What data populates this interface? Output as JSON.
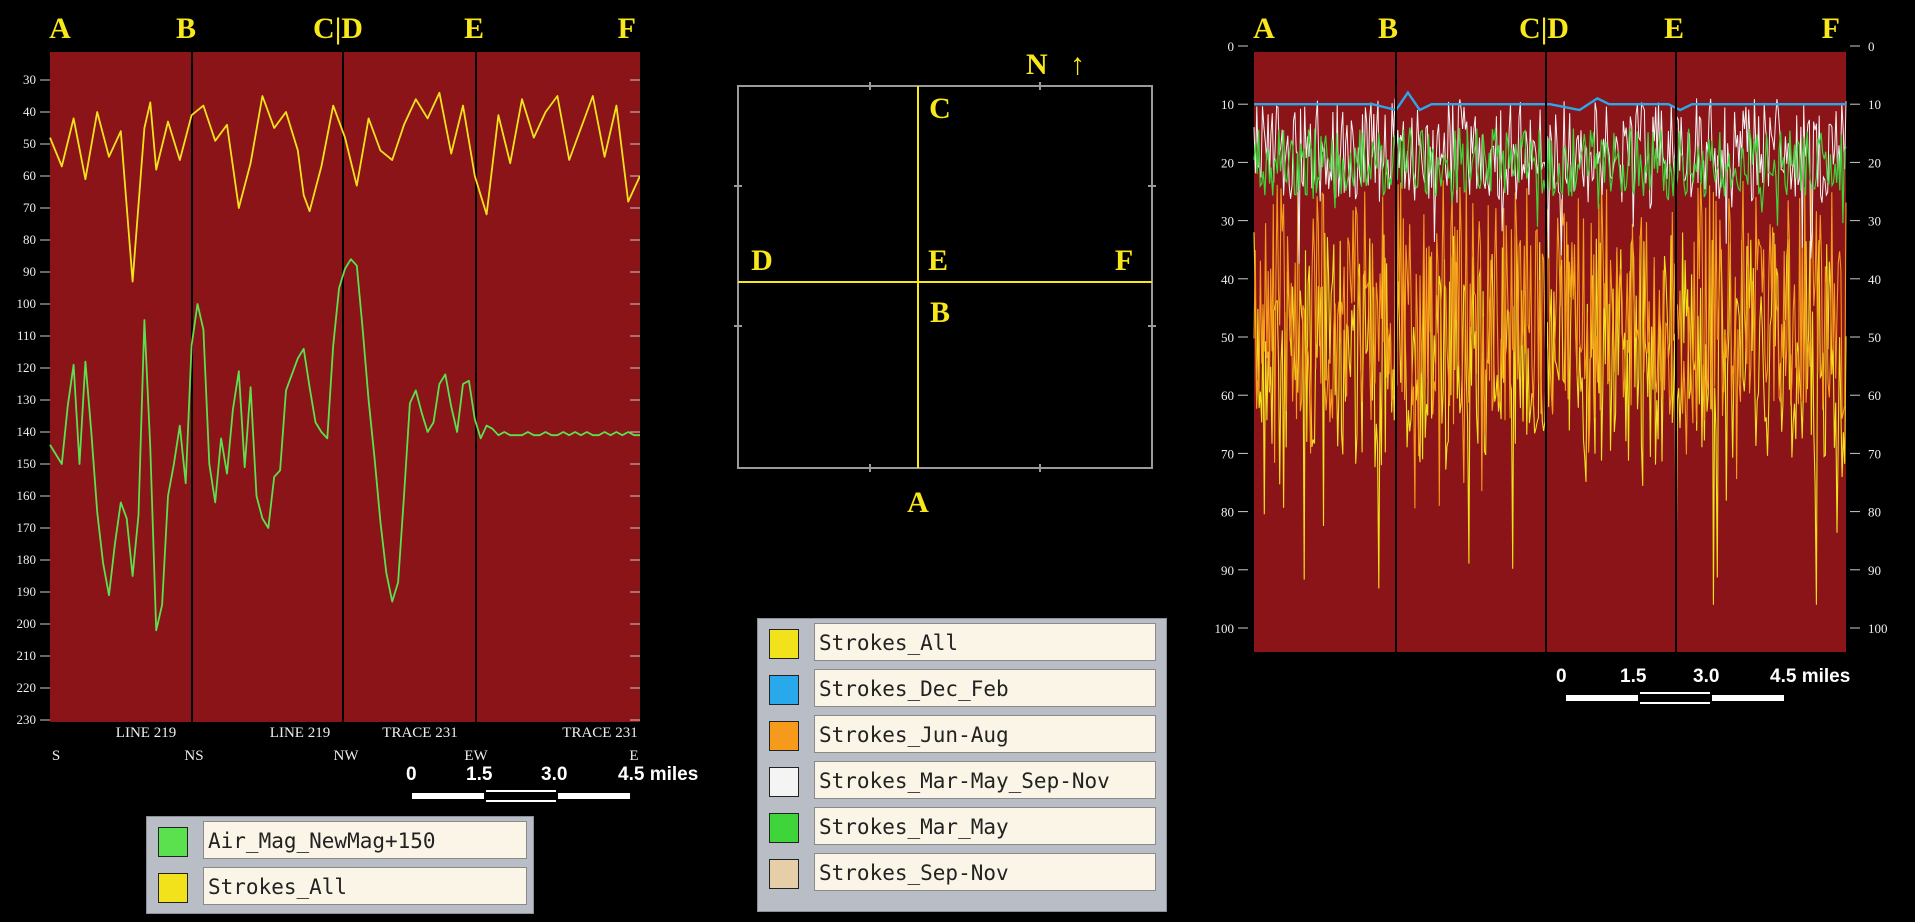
{
  "colors": {
    "panel_bg": "#8b1418",
    "strokes_all": "#f2e21c",
    "air_mag": "#5be04e",
    "strokes_dec_feb": "#2aa8ec",
    "strokes_jun_aug": "#f59a1a",
    "strokes_mar_may_sep_nov": "#f4f4f4",
    "strokes_mar_may": "#3fd43a",
    "strokes_sep_nov": "#e6cfa8",
    "section_label": "#f7e71b"
  },
  "chart_data": [
    {
      "type": "line",
      "section_labels": [
        "A",
        "B",
        "C|D",
        "E",
        "F"
      ],
      "y_ticks": [
        "30",
        "40",
        "50",
        "60",
        "70",
        "80",
        "90",
        "100",
        "110",
        "120",
        "130",
        "140",
        "150",
        "160",
        "170",
        "180",
        "190",
        "200",
        "210",
        "220",
        "230"
      ],
      "ylim": [
        230,
        20
      ],
      "bottom_labels": [
        "LINE 219",
        "LINE 219",
        "TRACE 231",
        "TRACE 231"
      ],
      "direction_labels": [
        "S",
        "NS",
        "NW",
        "EW",
        "E"
      ],
      "series": [
        {
          "name": "Strokes_All",
          "x": [
            0,
            2,
            4,
            6,
            8,
            10,
            12,
            14,
            16,
            17,
            18,
            20,
            22,
            24,
            26,
            28,
            30,
            32,
            34,
            36,
            38,
            40,
            42,
            43,
            44,
            46,
            48,
            50,
            52,
            54,
            56,
            58,
            60,
            62,
            64,
            66,
            68,
            70,
            72,
            74,
            76,
            78,
            80,
            82,
            84,
            86,
            88,
            90,
            92,
            94,
            96,
            98,
            100
          ],
          "values": [
            48,
            57,
            42,
            61,
            40,
            54,
            46,
            93,
            45,
            37,
            58,
            43,
            55,
            41,
            38,
            49,
            44,
            70,
            56,
            35,
            45,
            40,
            52,
            66,
            71,
            57,
            38,
            48,
            63,
            42,
            52,
            55,
            44,
            36,
            42,
            34,
            53,
            38,
            60,
            72,
            41,
            56,
            36,
            48,
            40,
            35,
            55,
            45,
            35,
            54,
            38,
            68,
            60
          ]
        },
        {
          "name": "Air_Mag_NewMag+150",
          "x": [
            0,
            2,
            3,
            4,
            5,
            6,
            7,
            8,
            9,
            10,
            11,
            12,
            13,
            14,
            15,
            16,
            17,
            18,
            19,
            20,
            21,
            22,
            23,
            24,
            25,
            26,
            27,
            28,
            29,
            30,
            31,
            32,
            33,
            34,
            35,
            36,
            37,
            38,
            39,
            40,
            41,
            42,
            43,
            44,
            45,
            46,
            47,
            48,
            49,
            50,
            51,
            52,
            53,
            54,
            55,
            56,
            57,
            58,
            59,
            60,
            61,
            62,
            63,
            64,
            65,
            66,
            67,
            68,
            69,
            70,
            71,
            72,
            73,
            74,
            75,
            76,
            77,
            78,
            79,
            80,
            81,
            82,
            83,
            84,
            85,
            86,
            87,
            88,
            89,
            90,
            91,
            92,
            93,
            94,
            95,
            96,
            97,
            98,
            99,
            100
          ],
          "values": [
            144,
            150,
            132,
            119,
            150,
            118,
            140,
            165,
            181,
            191,
            175,
            162,
            167,
            185,
            166,
            105,
            145,
            202,
            194,
            160,
            150,
            138,
            156,
            113,
            100,
            108,
            150,
            162,
            142,
            153,
            133,
            121,
            151,
            126,
            160,
            167,
            170,
            154,
            152,
            127,
            122,
            117,
            114,
            126,
            137,
            140,
            142,
            113,
            95,
            89,
            86,
            88,
            108,
            130,
            148,
            168,
            184,
            193,
            187,
            160,
            131,
            127,
            134,
            140,
            137,
            125,
            122,
            132,
            140,
            125,
            124,
            136,
            142,
            138,
            139,
            141,
            140,
            141,
            141,
            141,
            140,
            141,
            141,
            140,
            141,
            141,
            140,
            141,
            140,
            141,
            140,
            141,
            141,
            140,
            141,
            140,
            141,
            140,
            141,
            141
          ]
        }
      ]
    },
    {
      "type": "line",
      "section_labels": [
        "A",
        "B",
        "C|D",
        "E",
        "F"
      ],
      "y_ticks": [
        "0",
        "10",
        "20",
        "30",
        "40",
        "50",
        "60",
        "70",
        "80",
        "90",
        "100"
      ],
      "ylim": [
        100,
        0
      ],
      "series": [
        {
          "name": "Strokes_Dec_Feb",
          "x": [
            0,
            10,
            20,
            24,
            26,
            28,
            30,
            34,
            40,
            50,
            55,
            58,
            60,
            65,
            70,
            72,
            74,
            80,
            90,
            100
          ],
          "values": [
            10,
            10,
            10,
            11,
            8,
            11,
            10,
            10,
            10,
            10,
            11,
            9,
            10,
            10,
            10,
            11,
            10,
            10,
            10,
            10
          ]
        }
      ]
    }
  ],
  "map": {
    "north_label": "N",
    "point_labels": [
      "A",
      "B",
      "C",
      "D",
      "E",
      "F"
    ]
  },
  "scale_bars": [
    {
      "ticks": [
        "0",
        "1.5",
        "3.0",
        "4.5 miles"
      ]
    },
    {
      "ticks": [
        "0",
        "1.5",
        "3.0",
        "4.5 miles"
      ]
    }
  ],
  "legend_left": [
    {
      "label": "Air_Mag_NewMag+150",
      "color": "#5be04e"
    },
    {
      "label": "Strokes_All",
      "color": "#f2e21c"
    }
  ],
  "legend_center": [
    {
      "label": "Strokes_All",
      "color": "#f2e21c"
    },
    {
      "label": "Strokes_Dec_Feb",
      "color": "#2aa8ec"
    },
    {
      "label": "Strokes_Jun-Aug",
      "color": "#f59a1a"
    },
    {
      "label": "Strokes_Mar-May_Sep-Nov",
      "color": "#f4f4f4"
    },
    {
      "label": "Strokes_Mar_May",
      "color": "#3fd43a"
    },
    {
      "label": "Strokes_Sep-Nov",
      "color": "#e6cfa8"
    }
  ]
}
